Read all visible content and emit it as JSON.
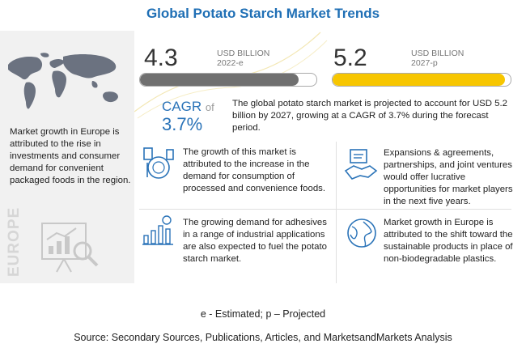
{
  "title": "Global Potato Starch Market Trends",
  "left_panel": {
    "description": "Market growth in Europe is attributed to the rise in investments and consumer demand for convenient packaged foods in the region.",
    "region_label": "EUROPE"
  },
  "stat_2022": {
    "value": "4.3",
    "unit_line1": "USD BILLION",
    "unit_line2": "2022-e",
    "bar_fill": 0.9,
    "bar_color": "#707070"
  },
  "stat_2027": {
    "value": "5.2",
    "unit_line1": "USD BILLION",
    "unit_line2": "2027-p",
    "bar_fill": 0.97,
    "bar_color": "#f7c600"
  },
  "cagr": {
    "label": "CAGR",
    "of_text": "of",
    "value": "3.7%",
    "description": "The global potato starch market is projected to account for USD 5.2 billion by 2027, growing at a CAGR of 3.7% during the forecast period."
  },
  "insights": [
    {
      "icon": "processed-food-icon",
      "text": "The growth of this market is attributed to the increase in the demand for consumption of processed and convenience foods."
    },
    {
      "icon": "handshake-icon",
      "text": "Expansions & agreements, partnerships, and joint ventures would offer lucrative opportunities for market players in the next five years."
    },
    {
      "icon": "growth-chart-icon",
      "text": "The growing demand for adhesives in a range of industrial applications are also expected to fuel the potato starch market."
    },
    {
      "icon": "globe-recycle-icon",
      "text": "Market growth in Europe is attributed to the shift toward the sustainable products in place of non-biodegradable plastics."
    }
  ],
  "footnote_estimated": "e - Estimated; p – Projected",
  "footnote_source": "Source: Secondary Sources, Publications, Articles, and MarketsandMarkets Analysis",
  "colors": {
    "title": "#1f6fb5",
    "accent_blue": "#2a73b8",
    "yellow": "#f7c600",
    "grey_bar": "#707070"
  }
}
